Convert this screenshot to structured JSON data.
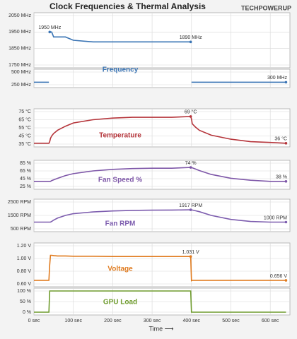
{
  "chart_data": [
    {
      "type": "line",
      "title": "Clock Frequencies & Thermal Analysis",
      "logo": "TECHPOWERUP",
      "color": "#3a74b4",
      "xlim": [
        0,
        650
      ],
      "ylim": [
        1750,
        2050
      ],
      "yticks": [
        {
          "value": 1750,
          "label": "1750 MHz"
        },
        {
          "value": 1850,
          "label": "1850 MHz"
        },
        {
          "value": 1950,
          "label": "1950 MHz"
        },
        {
          "value": 2050,
          "label": "2050 MHz"
        }
      ],
      "x": [
        0,
        38,
        40,
        42,
        45,
        50,
        60,
        80,
        100,
        150,
        200,
        250,
        300,
        350,
        398,
        400,
        402,
        410,
        420,
        450,
        500,
        550,
        600,
        640
      ],
      "values": [
        null,
        null,
        1950,
        1950,
        1950,
        1920,
        1920,
        1920,
        1900,
        1890,
        1890,
        1890,
        1890,
        1890,
        1890,
        null,
        null,
        null,
        null,
        null,
        null,
        null,
        null,
        null
      ],
      "annotations": [
        {
          "x": 40,
          "y": 1950,
          "label": "1950 MHz"
        },
        {
          "x": 398,
          "y": 1890,
          "label": "1890 MHz"
        }
      ]
    },
    {
      "type": "line",
      "label": "Frequency",
      "color": "#3a74b4",
      "xlim": [
        0,
        650
      ],
      "ylim": [
        250,
        500
      ],
      "yticks": [
        {
          "value": 250,
          "label": "250 MHz"
        },
        {
          "value": 500,
          "label": "500 MHz"
        }
      ],
      "x": [
        0,
        38,
        40,
        42,
        45,
        50,
        60,
        80,
        100,
        150,
        200,
        250,
        300,
        350,
        398,
        400,
        402,
        410,
        420,
        450,
        500,
        550,
        600,
        640
      ],
      "values": [
        300,
        300,
        null,
        null,
        null,
        null,
        null,
        null,
        null,
        null,
        null,
        null,
        null,
        null,
        null,
        300,
        300,
        300,
        300,
        300,
        300,
        300,
        300,
        300
      ],
      "annotations": [
        {
          "x": 640,
          "y": 300,
          "label": "300 MHz"
        }
      ]
    },
    {
      "type": "line",
      "label": "Temperature",
      "color": "#b5343a",
      "xlim": [
        0,
        650
      ],
      "ylim": [
        35,
        75
      ],
      "yticks": [
        {
          "value": 35,
          "label": "35 °C"
        },
        {
          "value": 45,
          "label": "45 °C"
        },
        {
          "value": 55,
          "label": "55 °C"
        },
        {
          "value": 65,
          "label": "65 °C"
        },
        {
          "value": 75,
          "label": "75 °C"
        }
      ],
      "x": [
        0,
        38,
        40,
        42,
        45,
        50,
        60,
        80,
        100,
        150,
        200,
        250,
        300,
        350,
        398,
        400,
        402,
        410,
        420,
        450,
        500,
        550,
        600,
        640
      ],
      "values": [
        36,
        36,
        38,
        42,
        45,
        48,
        52,
        57,
        61,
        65,
        67,
        68,
        68,
        68,
        69,
        66,
        60,
        56,
        52,
        46,
        41,
        38,
        37,
        36
      ],
      "annotations": [
        {
          "x": 398,
          "y": 69,
          "label": "69 °C"
        },
        {
          "x": 640,
          "y": 36,
          "label": "36 °C"
        }
      ]
    },
    {
      "type": "line",
      "label": "Fan Speed %",
      "color": "#7e57a8",
      "xlim": [
        0,
        650
      ],
      "ylim": [
        25,
        85
      ],
      "yticks": [
        {
          "value": 25,
          "label": "25 %"
        },
        {
          "value": 45,
          "label": "45 %"
        },
        {
          "value": 65,
          "label": "65 %"
        },
        {
          "value": 85,
          "label": "85 %"
        }
      ],
      "x": [
        0,
        38,
        40,
        42,
        45,
        50,
        60,
        80,
        100,
        150,
        200,
        250,
        300,
        350,
        398,
        400,
        402,
        410,
        420,
        450,
        500,
        550,
        600,
        640
      ],
      "values": [
        38,
        38,
        38,
        38,
        40,
        42,
        46,
        53,
        58,
        65,
        69,
        71,
        72,
        72,
        74,
        74,
        73,
        70,
        66,
        56,
        46,
        41,
        38,
        38
      ],
      "annotations": [
        {
          "x": 398,
          "y": 74,
          "label": "74 %"
        },
        {
          "x": 640,
          "y": 38,
          "label": "38 %"
        }
      ]
    },
    {
      "type": "line",
      "label": "Fan RPM",
      "color": "#7c5cae",
      "xlim": [
        0,
        650
      ],
      "ylim": [
        500,
        2500
      ],
      "yticks": [
        {
          "value": 500,
          "label": "500 RPM"
        },
        {
          "value": 1500,
          "label": "1500 RPM"
        },
        {
          "value": 2500,
          "label": "2500 RPM"
        }
      ],
      "x": [
        0,
        38,
        40,
        42,
        45,
        50,
        60,
        80,
        100,
        150,
        200,
        250,
        300,
        350,
        398,
        400,
        402,
        410,
        420,
        450,
        500,
        550,
        600,
        640
      ],
      "values": [
        1000,
        1000,
        1000,
        1000,
        1050,
        1150,
        1300,
        1500,
        1630,
        1760,
        1830,
        1870,
        1890,
        1900,
        1917,
        1917,
        1900,
        1850,
        1780,
        1500,
        1200,
        1050,
        1000,
        1000
      ],
      "annotations": [
        {
          "x": 398,
          "y": 1917,
          "label": "1917 RPM"
        },
        {
          "x": 640,
          "y": 1000,
          "label": "1000 RPM"
        }
      ]
    },
    {
      "type": "line",
      "label": "Voltage",
      "color": "#e07b1f",
      "xlim": [
        0,
        650
      ],
      "ylim": [
        0.6,
        1.2
      ],
      "yticks": [
        {
          "value": 0.6,
          "label": "0.60 V"
        },
        {
          "value": 0.8,
          "label": "0.80 V"
        },
        {
          "value": 1.0,
          "label": "1.00 V"
        },
        {
          "value": 1.2,
          "label": "1.20 V"
        }
      ],
      "x": [
        0,
        38,
        40,
        42,
        45,
        50,
        60,
        80,
        100,
        150,
        200,
        250,
        300,
        350,
        398,
        400,
        402,
        410,
        420,
        450,
        500,
        550,
        600,
        640
      ],
      "values": [
        0.656,
        0.656,
        0.9,
        1.05,
        1.05,
        1.045,
        1.04,
        1.04,
        1.035,
        1.035,
        1.031,
        1.031,
        1.031,
        1.031,
        1.031,
        0.65,
        0.656,
        0.656,
        0.656,
        0.656,
        0.656,
        0.656,
        0.656,
        0.656
      ],
      "annotations": [
        {
          "x": 398,
          "y": 1.031,
          "label": "1.031 V"
        },
        {
          "x": 640,
          "y": 0.656,
          "label": "0.656 V"
        }
      ]
    },
    {
      "type": "line",
      "label": "GPU Load",
      "color": "#6f9c2e",
      "xlim": [
        0,
        650
      ],
      "ylim": [
        0,
        100
      ],
      "yticks": [
        {
          "value": 0,
          "label": "0 %"
        },
        {
          "value": 50,
          "label": "50 %"
        },
        {
          "value": 100,
          "label": "100 %"
        }
      ],
      "x": [
        0,
        38,
        40,
        42,
        45,
        50,
        60,
        80,
        100,
        150,
        200,
        250,
        300,
        350,
        398,
        400,
        402,
        410,
        420,
        450,
        500,
        550,
        600,
        640
      ],
      "values": [
        0,
        0,
        100,
        100,
        100,
        100,
        100,
        100,
        100,
        100,
        100,
        100,
        100,
        100,
        100,
        0,
        0,
        0,
        0,
        0,
        0,
        0,
        0,
        0
      ],
      "annotations": [],
      "xlabel": "Time ⟶",
      "xticks": [
        {
          "value": 0,
          "label": "0 sec"
        },
        {
          "value": 100,
          "label": "100 sec"
        },
        {
          "value": 200,
          "label": "200 sec"
        },
        {
          "value": 300,
          "label": "300 sec"
        },
        {
          "value": 400,
          "label": "400 sec"
        },
        {
          "value": 500,
          "label": "500 sec"
        },
        {
          "value": 600,
          "label": "600 sec"
        }
      ]
    }
  ]
}
